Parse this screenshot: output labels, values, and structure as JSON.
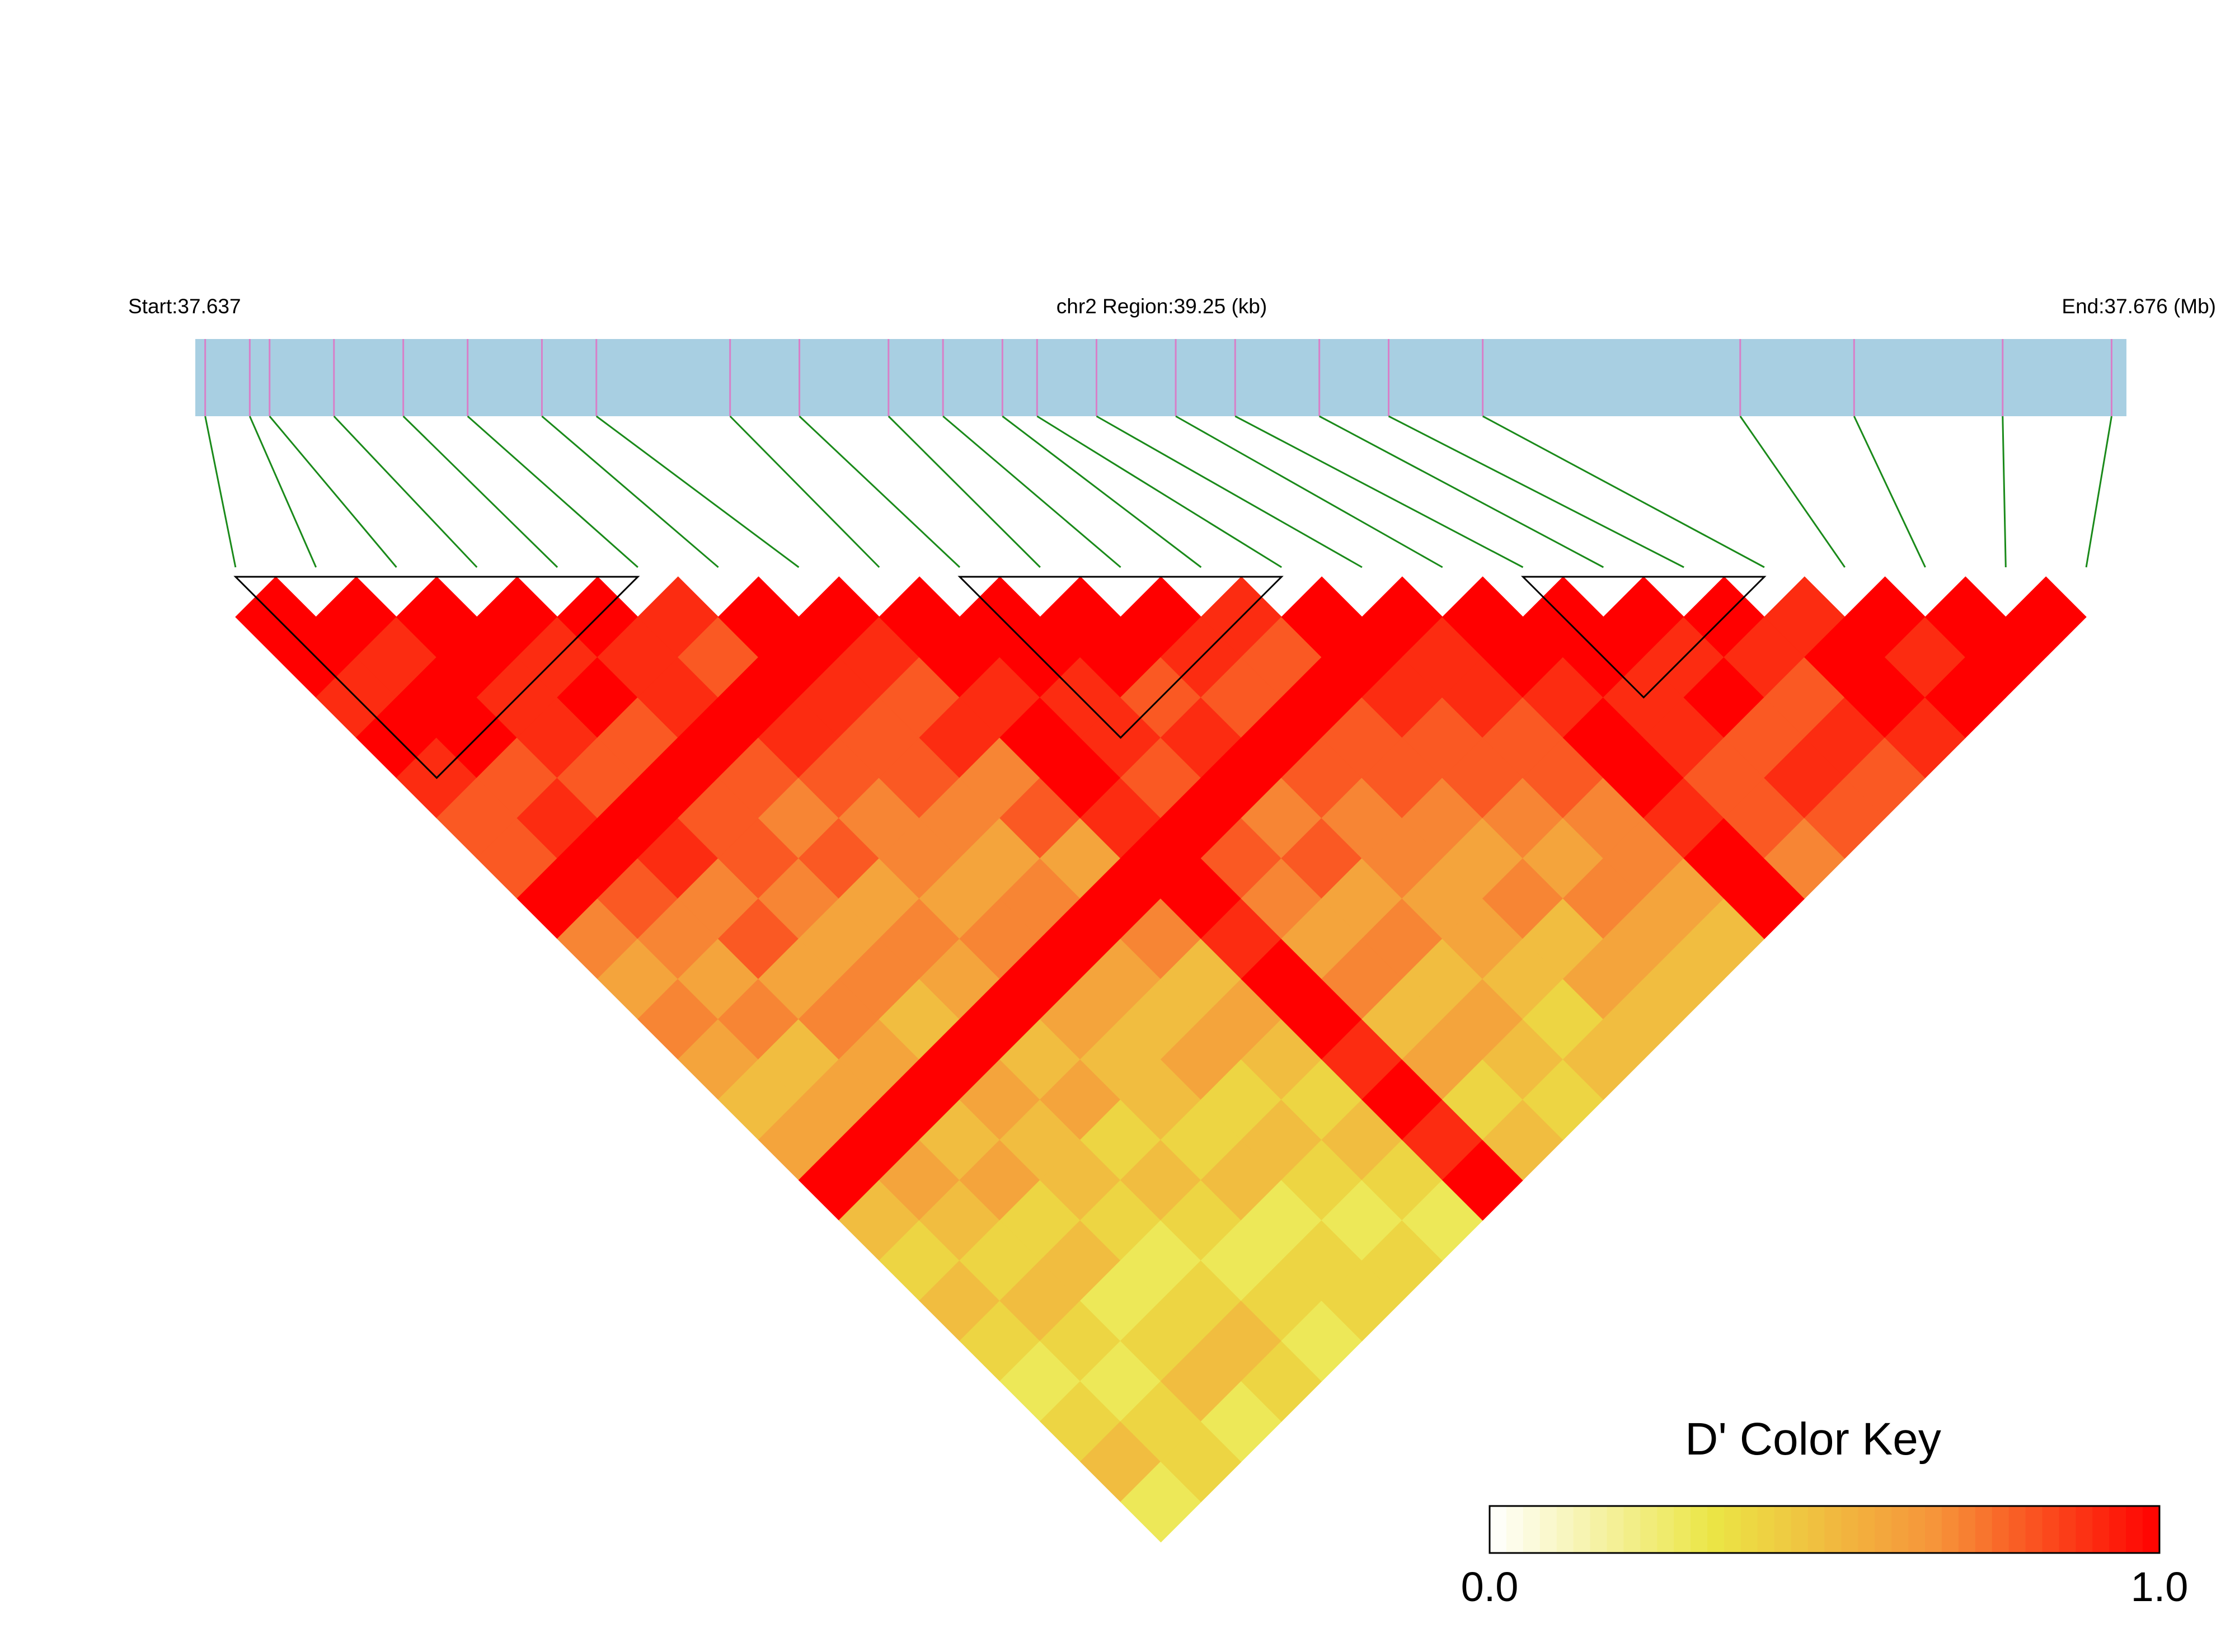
{
  "chart_data": {
    "type": "ld-heatmap",
    "start_label": "Start:37.637",
    "title": "chr2 Region:39.25 (kb)",
    "end_label": "End:37.676 (Mb)",
    "xlim": [
      37.637,
      37.676
    ],
    "snp_positions": [
      37.6372,
      37.6381,
      37.6385,
      37.6398,
      37.6412,
      37.6425,
      37.644,
      37.6451,
      37.6478,
      37.6492,
      37.651,
      37.6521,
      37.6533,
      37.654,
      37.6552,
      37.6568,
      37.658,
      37.6597,
      37.6611,
      37.663,
      37.6682,
      37.6705,
      37.6735,
      37.6757
    ],
    "bar_color": "#a8cfe2",
    "snp_line_color": "#d87fc8",
    "connector_color": "#1a8a1a",
    "dprime": [
      [
        1,
        1,
        0.9,
        1,
        0.9,
        0.8,
        0.8,
        1,
        0.7,
        0.6,
        0.7,
        0.6,
        0.5,
        0.6,
        1,
        0.5,
        0.4,
        0.5,
        0.4,
        0.3,
        0.4,
        0.5,
        0.3
      ],
      [
        1,
        0.9,
        1,
        1,
        0.8,
        0.9,
        1,
        0.8,
        0.7,
        0.6,
        0.7,
        0.5,
        0.6,
        1,
        0.6,
        0.5,
        0.4,
        0.5,
        0.4,
        0.3,
        0.4,
        0.4
      ],
      [
        1,
        1,
        0.9,
        0.9,
        0.8,
        1,
        0.9,
        0.7,
        0.8,
        0.6,
        0.7,
        0.6,
        1,
        0.5,
        0.6,
        0.4,
        0.5,
        0.3,
        0.4,
        0.5,
        0.3
      ],
      [
        1,
        0.9,
        1,
        0.8,
        1,
        0.8,
        0.8,
        0.7,
        0.6,
        0.7,
        0.5,
        1,
        0.6,
        0.5,
        0.5,
        0.4,
        0.3,
        0.4,
        0.5,
        0.4
      ],
      [
        1,
        0.9,
        0.9,
        1,
        0.8,
        0.7,
        0.8,
        0.6,
        0.7,
        0.6,
        1,
        0.5,
        0.6,
        0.4,
        0.5,
        0.4,
        0.3,
        0.4,
        0.3
      ],
      [
        0.9,
        0.8,
        1,
        0.9,
        0.8,
        0.7,
        0.7,
        0.6,
        0.7,
        1,
        0.6,
        0.5,
        0.5,
        0.4,
        0.5,
        0.3,
        0.4,
        0.4
      ],
      [
        1,
        1,
        0.9,
        0.8,
        0.8,
        0.7,
        0.6,
        0.7,
        1,
        0.6,
        0.5,
        0.6,
        0.4,
        0.5,
        0.4,
        0.3,
        0.4
      ],
      [
        1,
        0.9,
        0.8,
        0.9,
        0.7,
        0.8,
        0.6,
        1,
        0.7,
        0.5,
        0.6,
        0.5,
        0.4,
        0.5,
        0.4,
        0.3
      ],
      [
        1,
        1,
        0.9,
        1,
        1,
        0.9,
        1,
        1,
        0.9,
        1,
        1,
        0.9,
        1,
        0.9,
        1
      ],
      [
        1,
        1,
        0.9,
        0.9,
        0.8,
        1,
        0.8,
        0.7,
        0.6,
        0.7,
        0.5,
        0.6,
        0.4,
        0.5
      ],
      [
        1,
        1,
        0.8,
        0.9,
        1,
        0.7,
        0.8,
        0.6,
        0.7,
        0.5,
        0.6,
        0.5,
        0.4
      ],
      [
        1,
        0.9,
        0.8,
        1,
        0.8,
        0.7,
        0.7,
        0.6,
        0.6,
        0.5,
        0.4,
        0.5
      ],
      [
        0.9,
        0.8,
        1,
        0.8,
        0.8,
        0.7,
        0.6,
        0.7,
        0.5,
        0.6,
        0.5
      ],
      [
        1,
        1,
        0.9,
        0.8,
        0.8,
        0.7,
        0.6,
        0.7,
        0.6,
        0.5
      ],
      [
        1,
        0.9,
        0.9,
        0.8,
        0.8,
        0.7,
        0.7,
        0.6,
        0.5
      ],
      [
        1,
        1,
        0.9,
        1,
        1,
        0.9,
        1,
        1
      ],
      [
        1,
        1,
        0.9,
        0.9,
        0.8,
        0.8,
        0.7
      ],
      [
        1,
        0.9,
        1,
        0.8,
        0.9,
        0.8
      ],
      [
        1,
        0.9,
        0.8,
        0.9,
        0.8
      ],
      [
        0.9,
        1,
        1,
        0.9
      ],
      [
        1,
        0.9,
        1
      ],
      [
        1,
        1
      ],
      [
        1
      ]
    ],
    "ld_blocks": [
      [
        0,
        5
      ],
      [
        9,
        13
      ],
      [
        16,
        19
      ]
    ],
    "colors": [
      "#ffffff",
      "#ebe545",
      "#f6943a",
      "#ff0000"
    ],
    "key_title": "D' Color Key",
    "key_lim": [
      0,
      1
    ],
    "key_ticks": [
      {
        "value": 0,
        "label": "0.0"
      },
      {
        "value": 1,
        "label": "1.0"
      }
    ]
  }
}
